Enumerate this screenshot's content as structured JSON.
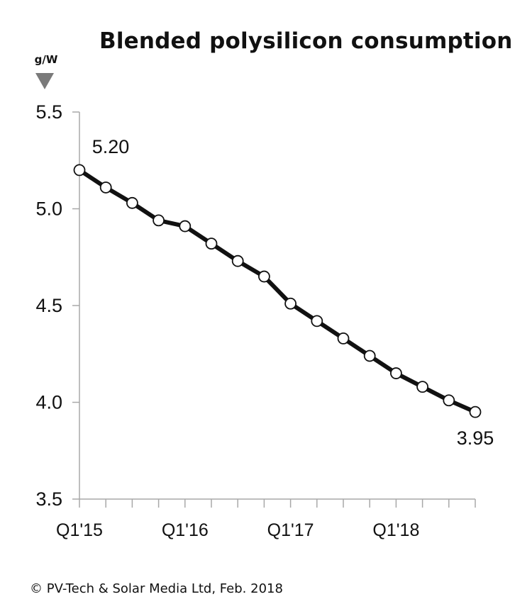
{
  "chart_data": {
    "type": "line",
    "title": "Blended polysilicon consumption",
    "ylabel": "g/W",
    "xlabel": "",
    "ylim": [
      3.5,
      5.5
    ],
    "yticks": [
      3.5,
      4.0,
      4.5,
      5.0,
      5.5
    ],
    "ytick_labels": [
      "3.5",
      "4.0",
      "4.5",
      "5.0",
      "5.5"
    ],
    "categories": [
      "Q1'15",
      "Q2'15",
      "Q3'15",
      "Q4'15",
      "Q1'16",
      "Q2'16",
      "Q3'16",
      "Q4'16",
      "Q1'17",
      "Q2'17",
      "Q3'17",
      "Q4'17",
      "Q1'18",
      "Q2'18",
      "Q3'18",
      "Q4'18"
    ],
    "xtick_labels": [
      "Q1'15",
      "Q1'16",
      "Q1'17",
      "Q1'18"
    ],
    "series": [
      {
        "values": [
          5.2,
          5.11,
          5.03,
          4.94,
          4.91,
          4.82,
          4.73,
          4.65,
          4.51,
          4.42,
          4.33,
          4.24,
          4.15,
          4.08,
          4.01,
          3.95
        ]
      }
    ],
    "annotations": [
      {
        "index": 0,
        "text": "5.20"
      },
      {
        "index": 15,
        "text": "3.95"
      }
    ],
    "grid": false,
    "legend": "none",
    "line_color": "#111111",
    "marker_fill": "#ffffff",
    "unit_marker_color": "#7a7a7a"
  },
  "footer": {
    "copyright": "© PV-Tech & Solar Media Ltd, Feb. 2018"
  }
}
